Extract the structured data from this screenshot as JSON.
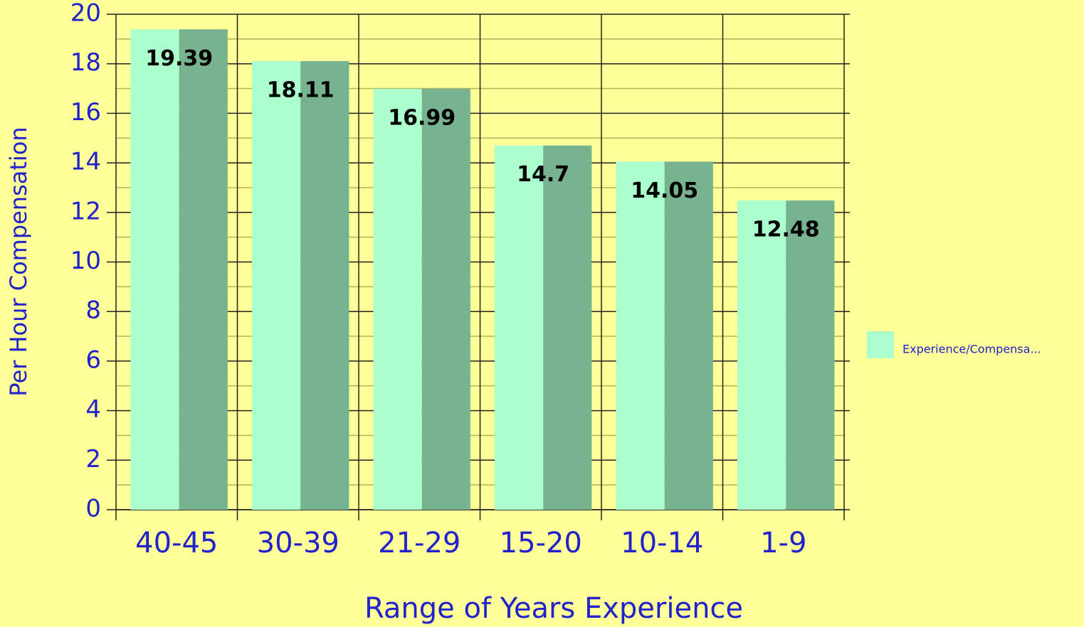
{
  "chart_data": {
    "type": "bar",
    "x_label": "Range of Years Experience",
    "y_label": "Per Hour Compensation",
    "categories": [
      "40-45",
      "30-39",
      "21-29",
      "15-20",
      "10-14",
      "1-9"
    ],
    "series": [
      {
        "name": "Experience/Compensa...",
        "color": "#aaffcc",
        "values": [
          19.39,
          18.11,
          16.99,
          14.7,
          14.05,
          12.48
        ]
      }
    ],
    "ylim": [
      0,
      20
    ],
    "yticks": [
      0,
      2,
      4,
      6,
      8,
      10,
      12,
      14,
      16,
      18,
      20
    ],
    "grid": true,
    "legend": "right"
  }
}
